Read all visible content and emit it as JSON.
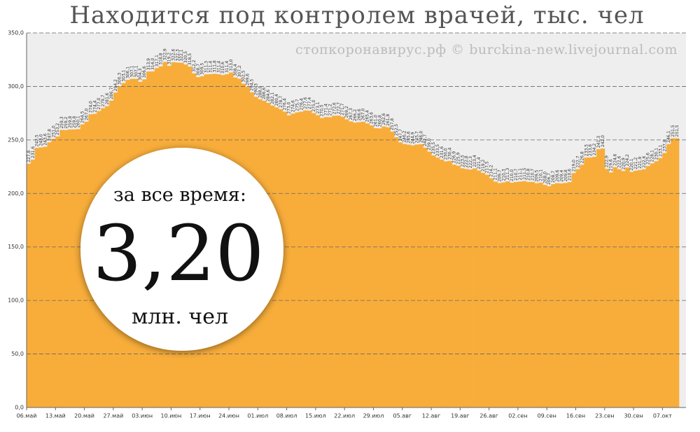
{
  "chart_data": {
    "type": "bar",
    "title": "Находится под контролем врачей, тыс. чел",
    "watermark": "стопкоронавирус.рф © burckina-new.livejournal.com",
    "annotation": {
      "top": "за все время:",
      "value": "3,20",
      "bottom": "млн. чел"
    },
    "color": "#f8ad3a",
    "plot_background": "#eeeeee",
    "grid": true,
    "ylim": [
      0,
      350
    ],
    "yticks": [
      {
        "value": 0,
        "label": "0,0"
      },
      {
        "value": 50,
        "label": "50,0"
      },
      {
        "value": 100,
        "label": "100,0"
      },
      {
        "value": 150,
        "label": "150,0"
      },
      {
        "value": 200,
        "label": "200,0"
      },
      {
        "value": 250,
        "label": "250,0"
      },
      {
        "value": 300,
        "label": "300,0"
      },
      {
        "value": 350,
        "label": "350,0"
      }
    ],
    "categories": [
      "06.май",
      null,
      null,
      null,
      null,
      null,
      null,
      "13.май",
      null,
      null,
      null,
      null,
      null,
      null,
      "20.май",
      null,
      null,
      null,
      null,
      null,
      null,
      "27.май",
      null,
      null,
      null,
      null,
      null,
      null,
      "03.июн",
      null,
      null,
      null,
      null,
      null,
      null,
      "10.июн",
      null,
      null,
      null,
      null,
      null,
      null,
      "17.июн",
      null,
      null,
      null,
      null,
      null,
      null,
      "24.июн",
      null,
      null,
      null,
      null,
      null,
      null,
      "01.июл",
      null,
      null,
      null,
      null,
      null,
      null,
      "08.июл",
      null,
      null,
      null,
      null,
      null,
      null,
      "15.июл",
      null,
      null,
      null,
      null,
      null,
      null,
      "22.июл",
      null,
      null,
      null,
      null,
      null,
      null,
      "29.июл",
      null,
      null,
      null,
      null,
      null,
      null,
      "05.авг",
      null,
      null,
      null,
      null,
      null,
      null,
      "12.авг",
      null,
      null,
      null,
      null,
      null,
      null,
      "19.авг",
      null,
      null,
      null,
      null,
      null,
      null,
      "26.авг",
      null,
      null,
      null,
      null,
      null,
      null,
      "02.сен",
      null,
      null,
      null,
      null,
      null,
      null,
      "09.сен",
      null,
      null,
      null,
      null,
      null,
      null,
      "16.сен",
      null,
      null,
      null,
      null,
      null,
      null,
      "23.сен",
      null,
      null,
      null,
      null,
      null,
      null,
      "30.сен",
      null,
      null,
      null,
      null,
      null,
      null,
      "07.окт",
      null,
      null,
      null
    ],
    "values": [
      227.8,
      231.6,
      242.5,
      243.0,
      243.6,
      247.8,
      251.0,
      253.2,
      259.3,
      259.2,
      259.8,
      259.8,
      260.1,
      264.5,
      267.0,
      274.0,
      274.4,
      277.0,
      279.7,
      281.6,
      286.7,
      294.2,
      300.3,
      303.1,
      306.1,
      307.1,
      307.1,
      304.3,
      306.6,
      313.9,
      314.0,
      317.1,
      318.8,
      322.9,
      319.2,
      322.6,
      322.3,
      322.1,
      320.5,
      318.5,
      312.2,
      308.7,
      309.5,
      311.3,
      311.4,
      311.8,
      311.4,
      310.6,
      311.4,
      313.0,
      308.4,
      307.2,
      302.5,
      299.6,
      294.5,
      290.3,
      288.0,
      286.6,
      284.6,
      282.1,
      280.4,
      278.7,
      276.4,
      273.0,
      274.6,
      275.7,
      276.4,
      277.6,
      277.4,
      275.0,
      273.1,
      270.5,
      271.4,
      271.2,
      272.6,
      272.7,
      271.7,
      269.2,
      267.3,
      266.2,
      266.6,
      267.0,
      265.4,
      263.6,
      261.0,
      260.8,
      262.6,
      261.8,
      257.8,
      252.5,
      247.7,
      246.2,
      245.6,
      244.9,
      245.7,
      246.0,
      242.7,
      239.0,
      235.5,
      233.5,
      231.6,
      230.0,
      230.4,
      226.9,
      225.9,
      223.5,
      222.8,
      222.3,
      223.4,
      221.4,
      219.2,
      217.5,
      214.2,
      211.1,
      209.7,
      210.3,
      211.3,
      210.0,
      210.7,
      211.1,
      211.5,
      210.8,
      210.7,
      209.5,
      210.1,
      208.0,
      206.7,
      208.7,
      209.6,
      209.4,
      209.8,
      210.6,
      219.0,
      222.7,
      226.8,
      233.5,
      233.6,
      234.2,
      241.3,
      242.0,
      222.9,
      219.6,
      224.6,
      222.6,
      220.9,
      224.2,
      220.1,
      221.2,
      221.9,
      222.6,
      225.6,
      228.1,
      230.1,
      233.1,
      237.8,
      246.1,
      251.5,
      251.5
    ],
    "value_labels": [
      "227,8",
      "231,6",
      "242,5",
      "243,0",
      "243,6",
      "247,8",
      "251,0",
      "253,2",
      "259,3",
      "259,2",
      "259,8",
      "259,8",
      "260,1",
      "264,5",
      "267,0",
      "274,0",
      "274,4",
      "277,0",
      "279,7",
      "281,6",
      "286,7",
      "294,2",
      "300,3",
      "303,1",
      "306,1",
      "307,1",
      "307,1",
      "304,3",
      "306,6",
      "313,9",
      "314,0",
      "317,1",
      "318,8",
      "322,9",
      "319,2",
      "322,6",
      "322,3",
      "322,1",
      "320,5",
      "318,5",
      "312,2",
      "308,7",
      "309,5",
      "311,3",
      "311,4",
      "311,8",
      "311,4",
      "310,6",
      "311,4",
      "313,0",
      "308,4",
      "307,2",
      "302,5",
      "299,6",
      "294,5",
      "290,3",
      "288,0",
      "286,6",
      "284,6",
      "282,1",
      "280,4",
      "278,7",
      "276,4",
      "273,0",
      "274,6",
      "275,7",
      "276,4",
      "277,6",
      "277,4",
      "275,0",
      "273,1",
      "270,5",
      "271,4",
      "271,2",
      "272,6",
      "272,7",
      "271,7",
      "269,2",
      "267,3",
      "266,2",
      "266,6",
      "267,0",
      "265,4",
      "263,6",
      "261,0",
      "260,8",
      "262,6",
      "261,8",
      "257,8",
      "252,5",
      "247,7",
      "246,2",
      "245,6",
      "244,9",
      "245,7",
      "246,0",
      "242,7",
      "239,0",
      "235,5",
      "233,5",
      "231,6",
      "230,0",
      "230,4",
      "226,9",
      "225,9",
      "223,5",
      "222,8",
      "222,3",
      "223,4",
      "221,4",
      "219,2",
      "217,5",
      "214,2",
      "211,1",
      "209,7",
      "210,3",
      "211,3",
      "210,0",
      "210,7",
      "211,1",
      "211,5",
      "210,8",
      "210,7",
      "209,5",
      "210,1",
      "208,0",
      "206,7",
      "208,7",
      "209,6",
      "209,4",
      "209,8",
      "210,6",
      "219,0",
      "222,7",
      "226,8",
      "233,5",
      "233,6",
      "234,2",
      "241,3",
      "242,0",
      "222,9",
      "219,6",
      "224,6",
      "222,6",
      "220,9",
      "224,2",
      "220,1",
      "221,2",
      "221,9",
      "222,6",
      "225,6",
      "228,1",
      "230,1",
      "233,1",
      "237,8",
      "246,1",
      "251,5",
      "251,5"
    ]
  }
}
